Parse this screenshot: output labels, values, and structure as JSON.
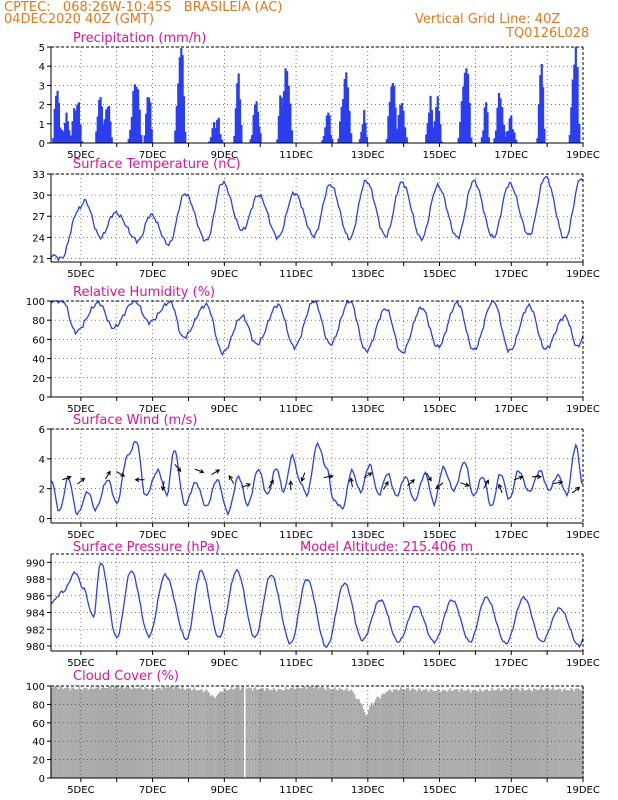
{
  "header": {
    "station_line": "CPTEC:   068:26W-10:45S   BRASILEIA (AC)",
    "date_line": "04DEC2020 40Z (GMT)",
    "grid_line_label": "Vertical Grid Line: 40Z",
    "code": "TQ0126L028"
  },
  "colors": {
    "header": "#e8761a",
    "title": "#e0119a",
    "series": "#2b3ff0",
    "bars": "#2b3ff0",
    "cloud": "#aaaaaa",
    "arrow": "#000000"
  },
  "x_ticks": [
    "5DEC",
    "7DEC",
    "9DEC",
    "11DEC",
    "13DEC",
    "15DEC",
    "17DEC",
    "19DEC"
  ],
  "chart_data": [
    {
      "id": "precip",
      "type": "bar",
      "title": "Precipitation (mm/h)",
      "ylim": [
        0,
        5
      ],
      "yticks": [
        0,
        1,
        2,
        3,
        4,
        5
      ],
      "peaks": [
        {
          "day": 4.35,
          "value": 2.9
        },
        {
          "day": 4.6,
          "value": 1.3
        },
        {
          "day": 4.9,
          "value": 2.1
        },
        {
          "day": 5.55,
          "value": 2.6
        },
        {
          "day": 5.75,
          "value": 2.0
        },
        {
          "day": 6.55,
          "value": 3.2
        },
        {
          "day": 6.9,
          "value": 2.7
        },
        {
          "day": 7.8,
          "value": 5.0
        },
        {
          "day": 8.8,
          "value": 1.2
        },
        {
          "day": 9.4,
          "value": 3.5
        },
        {
          "day": 9.9,
          "value": 2.1
        },
        {
          "day": 10.75,
          "value": 3.8
        },
        {
          "day": 10.6,
          "value": 2.6
        },
        {
          "day": 11.9,
          "value": 1.5
        },
        {
          "day": 12.4,
          "value": 3.5
        },
        {
          "day": 12.9,
          "value": 1.4
        },
        {
          "day": 13.7,
          "value": 3.3
        },
        {
          "day": 13.95,
          "value": 2.0
        },
        {
          "day": 14.75,
          "value": 2.2
        },
        {
          "day": 14.95,
          "value": 2.1
        },
        {
          "day": 15.75,
          "value": 4.0
        },
        {
          "day": 16.3,
          "value": 2.0
        },
        {
          "day": 16.7,
          "value": 2.6
        },
        {
          "day": 17.0,
          "value": 1.2
        },
        {
          "day": 17.85,
          "value": 4.0
        },
        {
          "day": 18.8,
          "value": 4.9
        }
      ]
    },
    {
      "id": "temp",
      "type": "line",
      "title": "Surface Temperature (nC)",
      "ylim": [
        20.5,
        33
      ],
      "yticks": [
        21,
        24,
        27,
        30,
        33
      ],
      "extrema": [
        {
          "day": 4.17,
          "value": 21.5
        },
        {
          "day": 4.45,
          "value": 21.0
        },
        {
          "day": 4.95,
          "value": 28.0
        },
        {
          "day": 5.1,
          "value": 29.2
        },
        {
          "day": 5.55,
          "value": 24.0
        },
        {
          "day": 5.95,
          "value": 27.5
        },
        {
          "day": 6.6,
          "value": 23.5
        },
        {
          "day": 6.95,
          "value": 27.2
        },
        {
          "day": 7.45,
          "value": 23.0
        },
        {
          "day": 7.9,
          "value": 30.2
        },
        {
          "day": 8.5,
          "value": 23.5
        },
        {
          "day": 8.95,
          "value": 31.8
        },
        {
          "day": 9.5,
          "value": 25.0
        },
        {
          "day": 9.95,
          "value": 30.0
        },
        {
          "day": 10.5,
          "value": 24.0
        },
        {
          "day": 10.95,
          "value": 30.3
        },
        {
          "day": 11.5,
          "value": 24.2
        },
        {
          "day": 11.95,
          "value": 31.5
        },
        {
          "day": 12.5,
          "value": 23.8
        },
        {
          "day": 12.95,
          "value": 32.0
        },
        {
          "day": 13.5,
          "value": 24.2
        },
        {
          "day": 13.95,
          "value": 31.8
        },
        {
          "day": 14.5,
          "value": 23.8
        },
        {
          "day": 14.95,
          "value": 31.3
        },
        {
          "day": 15.5,
          "value": 24.0
        },
        {
          "day": 15.95,
          "value": 32.0
        },
        {
          "day": 16.5,
          "value": 24.0
        },
        {
          "day": 16.95,
          "value": 31.6
        },
        {
          "day": 17.5,
          "value": 24.3
        },
        {
          "day": 17.95,
          "value": 32.6
        },
        {
          "day": 18.5,
          "value": 23.8
        },
        {
          "day": 18.95,
          "value": 32.5
        },
        {
          "day": 19.0,
          "value": 31.8
        }
      ]
    },
    {
      "id": "rh",
      "type": "line",
      "title": "Relative Humidity (%)",
      "ylim": [
        0,
        100
      ],
      "yticks": [
        0,
        20,
        40,
        60,
        80,
        100
      ],
      "extrema": [
        {
          "day": 4.17,
          "value": 100
        },
        {
          "day": 4.5,
          "value": 100
        },
        {
          "day": 4.85,
          "value": 68
        },
        {
          "day": 5.5,
          "value": 98
        },
        {
          "day": 5.9,
          "value": 72
        },
        {
          "day": 6.5,
          "value": 100
        },
        {
          "day": 6.9,
          "value": 78
        },
        {
          "day": 7.5,
          "value": 99
        },
        {
          "day": 7.85,
          "value": 62
        },
        {
          "day": 8.5,
          "value": 96
        },
        {
          "day": 8.95,
          "value": 46
        },
        {
          "day": 9.5,
          "value": 84
        },
        {
          "day": 9.9,
          "value": 55
        },
        {
          "day": 10.5,
          "value": 96
        },
        {
          "day": 10.95,
          "value": 52
        },
        {
          "day": 11.5,
          "value": 100
        },
        {
          "day": 11.95,
          "value": 55
        },
        {
          "day": 12.5,
          "value": 100
        },
        {
          "day": 12.95,
          "value": 48
        },
        {
          "day": 13.5,
          "value": 92
        },
        {
          "day": 13.95,
          "value": 46
        },
        {
          "day": 14.5,
          "value": 93
        },
        {
          "day": 14.95,
          "value": 52
        },
        {
          "day": 15.5,
          "value": 98
        },
        {
          "day": 15.95,
          "value": 49
        },
        {
          "day": 16.5,
          "value": 100
        },
        {
          "day": 16.95,
          "value": 48
        },
        {
          "day": 17.5,
          "value": 95
        },
        {
          "day": 17.95,
          "value": 50
        },
        {
          "day": 18.5,
          "value": 84
        },
        {
          "day": 18.85,
          "value": 52
        },
        {
          "day": 19.0,
          "value": 62
        }
      ]
    },
    {
      "id": "wind",
      "type": "line",
      "title": "Surface Wind (m/s)",
      "ylim": [
        -0.3,
        6
      ],
      "yticks": [
        0,
        2,
        4,
        6
      ],
      "extrema": [
        {
          "day": 4.17,
          "value": 2.6
        },
        {
          "day": 4.4,
          "value": 0.5
        },
        {
          "day": 4.65,
          "value": 2.7
        },
        {
          "day": 4.9,
          "value": 0.3
        },
        {
          "day": 5.2,
          "value": 1.8
        },
        {
          "day": 5.4,
          "value": 0.6
        },
        {
          "day": 5.75,
          "value": 2.6
        },
        {
          "day": 6.0,
          "value": 1.0
        },
        {
          "day": 6.3,
          "value": 4.2
        },
        {
          "day": 6.55,
          "value": 5.2
        },
        {
          "day": 6.8,
          "value": 1.5
        },
        {
          "day": 7.15,
          "value": 3.2
        },
        {
          "day": 7.4,
          "value": 1.6
        },
        {
          "day": 7.6,
          "value": 4.6
        },
        {
          "day": 7.9,
          "value": 0.9
        },
        {
          "day": 8.2,
          "value": 2.4
        },
        {
          "day": 8.5,
          "value": 0.8
        },
        {
          "day": 8.8,
          "value": 2.6
        },
        {
          "day": 9.1,
          "value": 0.4
        },
        {
          "day": 9.4,
          "value": 2.8
        },
        {
          "day": 9.65,
          "value": 0.9
        },
        {
          "day": 9.95,
          "value": 3.3
        },
        {
          "day": 10.2,
          "value": 1.6
        },
        {
          "day": 10.45,
          "value": 3.4
        },
        {
          "day": 10.65,
          "value": 1.8
        },
        {
          "day": 10.9,
          "value": 4.2
        },
        {
          "day": 11.1,
          "value": 2.5
        },
        {
          "day": 11.3,
          "value": 1.6
        },
        {
          "day": 11.6,
          "value": 5.0
        },
        {
          "day": 11.85,
          "value": 3.4
        },
        {
          "day": 12.05,
          "value": 1.2
        },
        {
          "day": 12.3,
          "value": 0.7
        },
        {
          "day": 12.55,
          "value": 3.2
        },
        {
          "day": 12.8,
          "value": 1.8
        },
        {
          "day": 13.05,
          "value": 3.6
        },
        {
          "day": 13.3,
          "value": 1.6
        },
        {
          "day": 13.55,
          "value": 3.0
        },
        {
          "day": 13.8,
          "value": 1.5
        },
        {
          "day": 14.05,
          "value": 2.8
        },
        {
          "day": 14.3,
          "value": 1.2
        },
        {
          "day": 14.6,
          "value": 3.0
        },
        {
          "day": 14.85,
          "value": 1.0
        },
        {
          "day": 15.1,
          "value": 3.4
        },
        {
          "day": 15.4,
          "value": 1.9
        },
        {
          "day": 15.7,
          "value": 3.8
        },
        {
          "day": 15.95,
          "value": 1.5
        },
        {
          "day": 16.2,
          "value": 2.8
        },
        {
          "day": 16.45,
          "value": 0.8
        },
        {
          "day": 16.7,
          "value": 3.0
        },
        {
          "day": 16.95,
          "value": 1.3
        },
        {
          "day": 17.2,
          "value": 3.2
        },
        {
          "day": 17.5,
          "value": 1.8
        },
        {
          "day": 17.8,
          "value": 3.2
        },
        {
          "day": 18.05,
          "value": 1.9
        },
        {
          "day": 18.3,
          "value": 2.9
        },
        {
          "day": 18.55,
          "value": 1.6
        },
        {
          "day": 18.8,
          "value": 4.9
        },
        {
          "day": 19.0,
          "value": 2.2
        }
      ],
      "vectors": [
        {
          "day": 4.6,
          "value": 2.7,
          "dir": 20
        },
        {
          "day": 5.0,
          "value": 2.5,
          "dir": 40
        },
        {
          "day": 5.75,
          "value": 2.9,
          "dir": 60
        },
        {
          "day": 6.1,
          "value": 3.0,
          "dir": -30
        },
        {
          "day": 6.65,
          "value": 2.6,
          "dir": 180
        },
        {
          "day": 7.3,
          "value": 2.2,
          "dir": -100
        },
        {
          "day": 7.7,
          "value": 3.4,
          "dir": -50
        },
        {
          "day": 8.3,
          "value": 3.2,
          "dir": -20
        },
        {
          "day": 8.75,
          "value": 3.1,
          "dir": 30
        },
        {
          "day": 9.2,
          "value": 2.6,
          "dir": 120
        },
        {
          "day": 9.6,
          "value": 2.2,
          "dir": 20
        },
        {
          "day": 10.3,
          "value": 2.3,
          "dir": 60
        },
        {
          "day": 10.85,
          "value": 2.2,
          "dir": 90
        },
        {
          "day": 11.2,
          "value": 2.8,
          "dir": -110
        },
        {
          "day": 11.9,
          "value": 2.8,
          "dir": 10
        },
        {
          "day": 12.55,
          "value": 2.4,
          "dir": 100
        },
        {
          "day": 13.0,
          "value": 2.9,
          "dir": 30
        },
        {
          "day": 13.5,
          "value": 2.2,
          "dir": 60
        },
        {
          "day": 14.2,
          "value": 2.4,
          "dir": 40
        },
        {
          "day": 14.7,
          "value": 2.8,
          "dir": -60
        },
        {
          "day": 15.0,
          "value": 2.2,
          "dir": -140
        },
        {
          "day": 15.7,
          "value": 2.3,
          "dir": -20
        },
        {
          "day": 16.3,
          "value": 2.3,
          "dir": 60
        },
        {
          "day": 16.7,
          "value": 2.0,
          "dir": 110
        },
        {
          "day": 17.2,
          "value": 2.7,
          "dir": 20
        },
        {
          "day": 17.7,
          "value": 2.8,
          "dir": 0
        },
        {
          "day": 18.3,
          "value": 2.4,
          "dir": 10
        },
        {
          "day": 18.8,
          "value": 1.9,
          "dir": 40
        }
      ]
    },
    {
      "id": "pres",
      "type": "line",
      "title": "Surface Pressure (hPa)",
      "annotation": "Model Altitude: 215.406 m",
      "ylim": [
        979.4,
        991
      ],
      "yticks": [
        980,
        982,
        984,
        986,
        988,
        990
      ],
      "extrema": [
        {
          "day": 4.17,
          "value": 985.2
        },
        {
          "day": 4.5,
          "value": 986.5
        },
        {
          "day": 4.85,
          "value": 988.8
        },
        {
          "day": 5.05,
          "value": 987.0
        },
        {
          "day": 5.35,
          "value": 983.5
        },
        {
          "day": 5.55,
          "value": 990.0
        },
        {
          "day": 6.0,
          "value": 981.0
        },
        {
          "day": 6.4,
          "value": 989.0
        },
        {
          "day": 6.9,
          "value": 981.2
        },
        {
          "day": 7.35,
          "value": 988.5
        },
        {
          "day": 7.95,
          "value": 980.8
        },
        {
          "day": 8.35,
          "value": 989.0
        },
        {
          "day": 8.85,
          "value": 981.0
        },
        {
          "day": 9.35,
          "value": 989.0
        },
        {
          "day": 9.85,
          "value": 981.0
        },
        {
          "day": 10.3,
          "value": 988.5
        },
        {
          "day": 10.85,
          "value": 980.3
        },
        {
          "day": 11.3,
          "value": 988.0
        },
        {
          "day": 11.85,
          "value": 979.9
        },
        {
          "day": 12.35,
          "value": 987.5
        },
        {
          "day": 12.85,
          "value": 980.7
        },
        {
          "day": 13.35,
          "value": 985.5
        },
        {
          "day": 13.85,
          "value": 980.5
        },
        {
          "day": 14.35,
          "value": 984.8
        },
        {
          "day": 14.85,
          "value": 980.5
        },
        {
          "day": 15.35,
          "value": 985.5
        },
        {
          "day": 15.85,
          "value": 980.5
        },
        {
          "day": 16.3,
          "value": 985.8
        },
        {
          "day": 16.85,
          "value": 980.3
        },
        {
          "day": 17.35,
          "value": 985.8
        },
        {
          "day": 17.85,
          "value": 980.5
        },
        {
          "day": 18.35,
          "value": 984.5
        },
        {
          "day": 18.9,
          "value": 980.0
        },
        {
          "day": 19.0,
          "value": 980.8
        }
      ]
    },
    {
      "id": "cloud",
      "type": "bar",
      "title": "Cloud Cover (%)",
      "ylim": [
        0,
        100
      ],
      "yticks": [
        0,
        20,
        40,
        60,
        80,
        100
      ],
      "points": [
        {
          "day": 4.17,
          "value": 99
        },
        {
          "day": 4.5,
          "value": 98
        },
        {
          "day": 5.0,
          "value": 97
        },
        {
          "day": 5.5,
          "value": 98
        },
        {
          "day": 6.0,
          "value": 99
        },
        {
          "day": 6.5,
          "value": 98
        },
        {
          "day": 7.0,
          "value": 97
        },
        {
          "day": 7.5,
          "value": 99
        },
        {
          "day": 8.0,
          "value": 97
        },
        {
          "day": 8.5,
          "value": 95
        },
        {
          "day": 8.7,
          "value": 88
        },
        {
          "day": 9.0,
          "value": 96
        },
        {
          "day": 9.4,
          "value": 98
        },
        {
          "day": 10.0,
          "value": 97
        },
        {
          "day": 10.5,
          "value": 96
        },
        {
          "day": 11.0,
          "value": 98
        },
        {
          "day": 11.5,
          "value": 99
        },
        {
          "day": 12.0,
          "value": 97
        },
        {
          "day": 12.5,
          "value": 96
        },
        {
          "day": 12.8,
          "value": 83
        },
        {
          "day": 12.95,
          "value": 68
        },
        {
          "day": 13.1,
          "value": 80
        },
        {
          "day": 13.3,
          "value": 88
        },
        {
          "day": 13.6,
          "value": 95
        },
        {
          "day": 14.0,
          "value": 97
        },
        {
          "day": 14.5,
          "value": 96
        },
        {
          "day": 15.0,
          "value": 95
        },
        {
          "day": 15.5,
          "value": 96
        },
        {
          "day": 16.0,
          "value": 95
        },
        {
          "day": 16.5,
          "value": 96
        },
        {
          "day": 17.0,
          "value": 97
        },
        {
          "day": 17.5,
          "value": 96
        },
        {
          "day": 18.0,
          "value": 97
        },
        {
          "day": 18.5,
          "value": 96
        },
        {
          "day": 19.0,
          "value": 97
        }
      ]
    }
  ]
}
